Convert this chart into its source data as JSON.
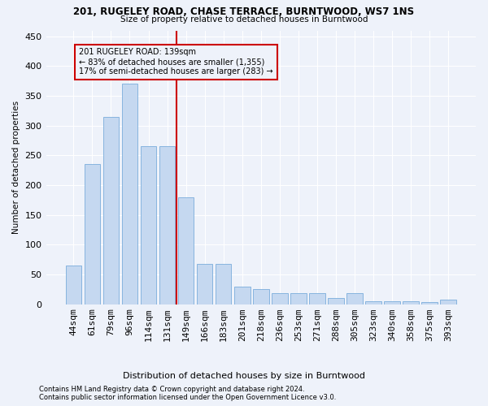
{
  "title1": "201, RUGELEY ROAD, CHASE TERRACE, BURNTWOOD, WS7 1NS",
  "title2": "Size of property relative to detached houses in Burntwood",
  "xlabel": "Distribution of detached houses by size in Burntwood",
  "ylabel": "Number of detached properties",
  "footnote1": "Contains HM Land Registry data © Crown copyright and database right 2024.",
  "footnote2": "Contains public sector information licensed under the Open Government Licence v3.0.",
  "annotation_line1": "201 RUGELEY ROAD: 139sqm",
  "annotation_line2": "← 83% of detached houses are smaller (1,355)",
  "annotation_line3": "17% of semi-detached houses are larger (283) →",
  "bar_color": "#c5d8f0",
  "bar_edgecolor": "#7aaddb",
  "vline_color": "#cc0000",
  "annotation_box_edgecolor": "#cc0000",
  "categories": [
    "44sqm",
    "61sqm",
    "79sqm",
    "96sqm",
    "114sqm",
    "131sqm",
    "149sqm",
    "166sqm",
    "183sqm",
    "201sqm",
    "218sqm",
    "236sqm",
    "253sqm",
    "271sqm",
    "288sqm",
    "305sqm",
    "323sqm",
    "340sqm",
    "358sqm",
    "375sqm",
    "393sqm"
  ],
  "values": [
    65,
    235,
    315,
    370,
    265,
    265,
    180,
    68,
    68,
    30,
    25,
    18,
    18,
    18,
    10,
    18,
    5,
    5,
    5,
    3,
    8
  ],
  "ylim": [
    0,
    460
  ],
  "yticks": [
    0,
    50,
    100,
    150,
    200,
    250,
    300,
    350,
    400,
    450
  ],
  "vline_bin_index": 5,
  "background_color": "#eef2fa",
  "grid_color": "#ffffff"
}
